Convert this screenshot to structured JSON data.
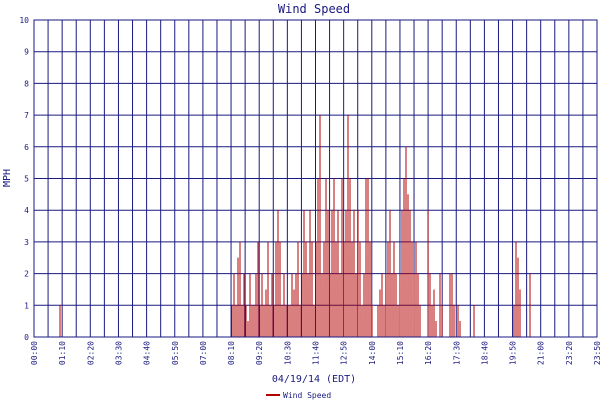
{
  "chart_data": {
    "type": "line",
    "title": "Wind Speed",
    "xlabel": "04/19/14 (EDT)",
    "ylabel": "MPH",
    "ylim": [
      0,
      10
    ],
    "yticks": [
      "0",
      "1",
      "2",
      "3",
      "4",
      "5",
      "6",
      "7",
      "8",
      "9",
      "10"
    ],
    "xticks": [
      "00:00",
      "01:10",
      "02:20",
      "03:30",
      "04:40",
      "05:50",
      "07:00",
      "08:10",
      "09:20",
      "10:30",
      "11:40",
      "12:50",
      "14:00",
      "15:10",
      "16:20",
      "17:30",
      "18:40",
      "19:50",
      "21:00",
      "23:20",
      "23:50"
    ],
    "grid": true,
    "legend_position": "bottom-left",
    "colors": {
      "series": "#b30000",
      "grid": "#1a1a80",
      "text": "#1a1a80"
    },
    "series": [
      {
        "name": "Wind Speed",
        "spikes": [
          [
            60,
            1
          ],
          [
            232,
            1
          ],
          [
            234,
            2
          ],
          [
            236,
            1
          ],
          [
            238,
            2.5
          ],
          [
            240,
            3
          ],
          [
            242,
            1
          ],
          [
            244,
            2
          ],
          [
            246,
            1
          ],
          [
            248,
            0.5
          ],
          [
            250,
            2
          ],
          [
            252,
            1
          ],
          [
            254,
            1
          ],
          [
            256,
            2
          ],
          [
            258,
            3
          ],
          [
            260,
            1
          ],
          [
            262,
            2
          ],
          [
            264,
            1
          ],
          [
            266,
            1.5
          ],
          [
            268,
            3
          ],
          [
            270,
            1
          ],
          [
            272,
            2
          ],
          [
            274,
            1
          ],
          [
            276,
            3
          ],
          [
            278,
            4
          ],
          [
            280,
            3
          ],
          [
            282,
            1
          ],
          [
            284,
            2
          ],
          [
            286,
            1
          ],
          [
            288,
            1
          ],
          [
            290,
            1
          ],
          [
            292,
            2
          ],
          [
            294,
            1.5
          ],
          [
            296,
            2
          ],
          [
            298,
            3
          ],
          [
            300,
            1
          ],
          [
            302,
            2
          ],
          [
            304,
            4
          ],
          [
            306,
            3
          ],
          [
            308,
            2
          ],
          [
            310,
            4
          ],
          [
            312,
            3
          ],
          [
            314,
            1
          ],
          [
            316,
            3
          ],
          [
            318,
            5
          ],
          [
            320,
            7
          ],
          [
            322,
            2
          ],
          [
            324,
            3
          ],
          [
            326,
            5
          ],
          [
            328,
            4
          ],
          [
            330,
            2
          ],
          [
            332,
            4
          ],
          [
            334,
            5
          ],
          [
            336,
            3
          ],
          [
            338,
            4
          ],
          [
            340,
            2
          ],
          [
            342,
            5
          ],
          [
            344,
            3
          ],
          [
            346,
            4
          ],
          [
            348,
            7
          ],
          [
            350,
            5
          ],
          [
            352,
            3
          ],
          [
            354,
            4
          ],
          [
            356,
            2
          ],
          [
            358,
            4
          ],
          [
            360,
            3
          ],
          [
            362,
            1
          ],
          [
            364,
            2
          ],
          [
            366,
            5
          ],
          [
            368,
            5
          ],
          [
            370,
            3
          ],
          [
            372,
            1
          ],
          [
            378,
            1
          ],
          [
            380,
            1.5
          ],
          [
            382,
            2
          ],
          [
            384,
            1
          ],
          [
            386,
            2
          ],
          [
            388,
            3
          ],
          [
            390,
            4
          ],
          [
            392,
            2
          ],
          [
            394,
            3
          ],
          [
            396,
            2
          ],
          [
            398,
            1
          ],
          [
            400,
            2
          ],
          [
            402,
            4
          ],
          [
            404,
            5
          ],
          [
            406,
            6
          ],
          [
            408,
            4.5
          ],
          [
            410,
            4
          ],
          [
            412,
            3
          ],
          [
            414,
            2
          ],
          [
            416,
            3
          ],
          [
            418,
            2
          ],
          [
            420,
            1
          ],
          [
            428,
            4
          ],
          [
            430,
            2
          ],
          [
            432,
            1
          ],
          [
            434,
            1.5
          ],
          [
            436,
            0.5
          ],
          [
            440,
            2
          ],
          [
            442,
            1
          ],
          [
            450,
            2
          ],
          [
            452,
            2
          ],
          [
            454,
            1
          ],
          [
            458,
            1
          ],
          [
            460,
            0.5
          ],
          [
            474,
            1
          ],
          [
            514,
            1
          ],
          [
            516,
            3
          ],
          [
            518,
            2.5
          ],
          [
            520,
            1.5
          ],
          [
            530,
            2
          ]
        ]
      }
    ]
  }
}
